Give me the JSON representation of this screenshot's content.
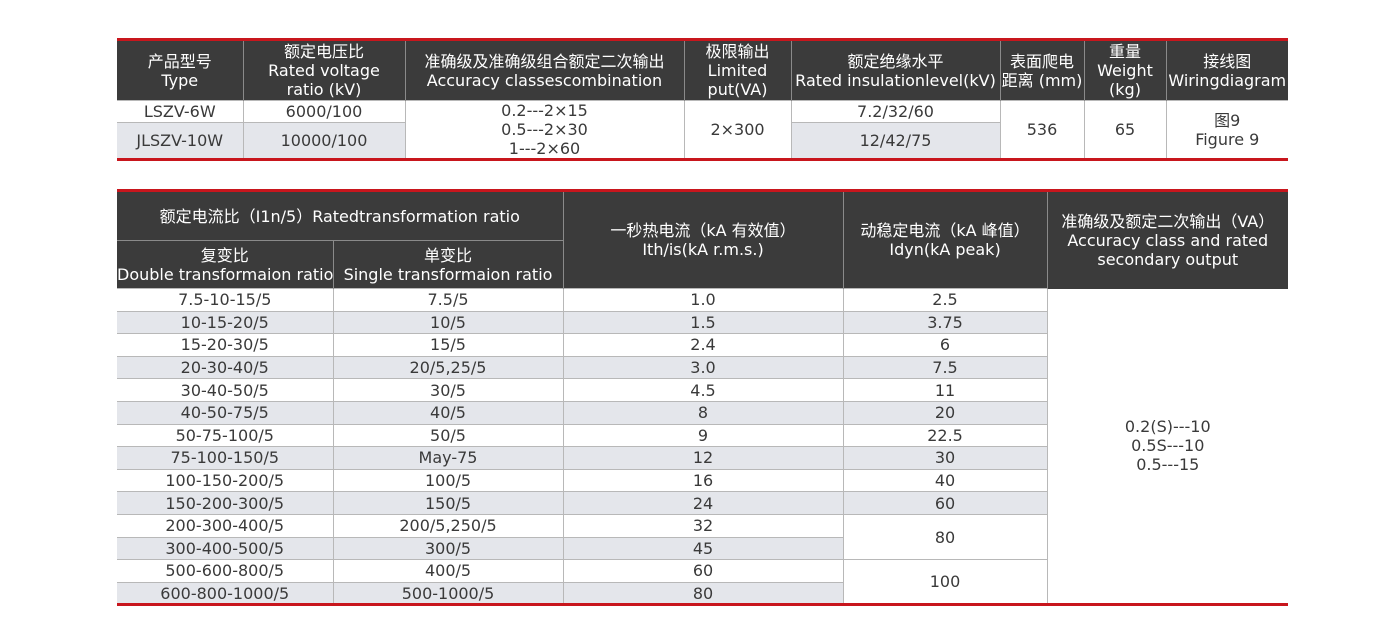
{
  "table1": {
    "headers": [
      {
        "zh": "产品型号",
        "en": "Type"
      },
      {
        "zh": "额定电压比",
        "en": "Rated voltage",
        "en2": "ratio (kV)"
      },
      {
        "zh": "准确级及准确级组合额定二次输出",
        "en": "Accuracy classescombination"
      },
      {
        "zh": "极限输出",
        "en": "Limited",
        "en2": "put(VA)"
      },
      {
        "zh": "额定绝缘水平",
        "en": "Rated insulationlevel(kV)"
      },
      {
        "zh": "表面爬电",
        "en": "距离 (mm)"
      },
      {
        "zh": "重量",
        "en": "Weight",
        "en2": "(kg)"
      },
      {
        "zh": "接线图",
        "en": "Wiringdiagram"
      }
    ],
    "rows": [
      {
        "type": "LSZV-6W",
        "ratio": "6000/100",
        "insulation": "7.2/32/60"
      },
      {
        "type": "JLSZV-10W",
        "ratio": "10000/100",
        "insulation": "12/42/75"
      }
    ],
    "accuracy": [
      "0.2---2×15",
      "0.5---2×30",
      "1---2×60"
    ],
    "limited": "2×300",
    "creepage": "536",
    "weight": "65",
    "wiring": {
      "zh": "图9",
      "en": "Figure 9"
    }
  },
  "table2": {
    "headers": {
      "ratio_group": "额定电流比（I1n/5）Ratedtransformation ratio",
      "double": {
        "zh": "复变比",
        "en": "Double transformaion ratio"
      },
      "single": {
        "zh": "单变比",
        "en": "Single transformaion ratio"
      },
      "thermal": {
        "zh": "一秒热电流（kA 有效值）",
        "en": "Ith/is(kA r.m.s.)"
      },
      "dynamic": {
        "zh": "动稳定电流（kA 峰值）",
        "en": "Idyn(kA peak)"
      },
      "accuracy": {
        "zh": "准确级及额定二次输出（VA）",
        "en": "Accuracy class and rated",
        "en2": "secondary output"
      }
    },
    "rows": [
      {
        "double": "7.5-10-15/5",
        "single": "7.5/5",
        "ith": "1.0",
        "idyn": "2.5"
      },
      {
        "double": "10-15-20/5",
        "single": "10/5",
        "ith": "1.5",
        "idyn": "3.75"
      },
      {
        "double": "15-20-30/5",
        "single": "15/5",
        "ith": "2.4",
        "idyn": "6"
      },
      {
        "double": "20-30-40/5",
        "single": "20/5,25/5",
        "ith": "3.0",
        "idyn": "7.5"
      },
      {
        "double": "30-40-50/5",
        "single": "30/5",
        "ith": "4.5",
        "idyn": "11"
      },
      {
        "double": "40-50-75/5",
        "single": "40/5",
        "ith": "8",
        "idyn": "20"
      },
      {
        "double": "50-75-100/5",
        "single": "50/5",
        "ith": "9",
        "idyn": "22.5"
      },
      {
        "double": "75-100-150/5",
        "single": "May-75",
        "ith": "12",
        "idyn": "30"
      },
      {
        "double": "100-150-200/5",
        "single": "100/5",
        "ith": "16",
        "idyn": "40"
      },
      {
        "double": "150-200-300/5",
        "single": "150/5",
        "ith": "24",
        "idyn": "60"
      },
      {
        "double": "200-300-400/5",
        "single": "200/5,250/5",
        "ith": "32",
        "idyn": "80"
      },
      {
        "double": "300-400-500/5",
        "single": "300/5",
        "ith": "45"
      },
      {
        "double": "500-600-800/5",
        "single": "400/5",
        "ith": "60",
        "idyn": "100"
      },
      {
        "double": "600-800-1000/5",
        "single": "500-1000/5",
        "ith": "80"
      }
    ],
    "accuracy_values": [
      "0.2(S)---10",
      "0.5S---10",
      "0.5---15"
    ]
  }
}
